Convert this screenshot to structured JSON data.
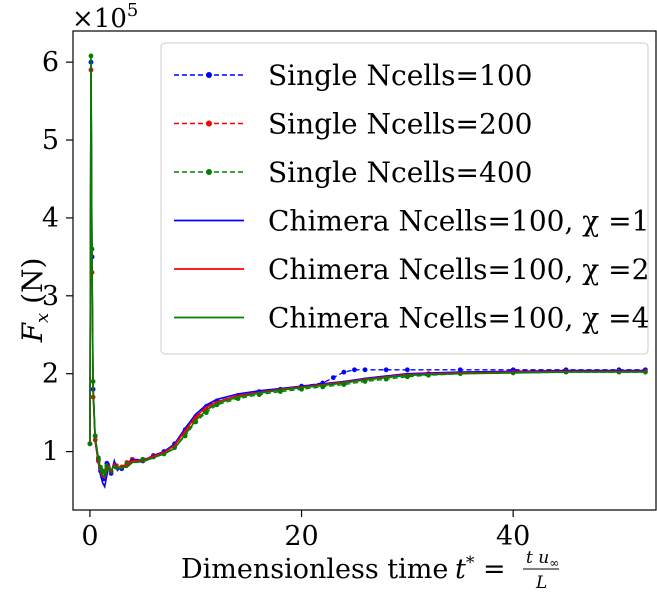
{
  "chart_data": {
    "type": "line",
    "title": "",
    "xlabel": "Dimensionless time",
    "xlabel_math": "t* = t u∞ / L",
    "ylabel": "F_x (N)",
    "y_scale_label": "×10^5",
    "xlim": [
      -1.6,
      53.5
    ],
    "ylim": [
      0.25,
      6.4
    ],
    "y_units_factor": 100000,
    "xticks": [
      0,
      20,
      40
    ],
    "xtick_labels": [
      "0",
      "20",
      "40"
    ],
    "yticks": [
      1,
      2,
      3,
      4,
      5,
      6
    ],
    "ytick_labels": [
      "1",
      "2",
      "3",
      "4",
      "5",
      "6"
    ],
    "grid": false,
    "legend_position": "top-right",
    "series": [
      {
        "name": "Single Ncells=100",
        "style": "dashed-markers",
        "color": "#0000ff",
        "x": [
          0,
          0.1,
          0.2,
          0.3,
          0.5,
          0.8,
          1.0,
          1.3,
          1.6,
          2.0,
          2.5,
          3.0,
          3.5,
          4.0,
          5.0,
          6.0,
          7.0,
          8.0,
          9.0,
          10.0,
          11.0,
          12.0,
          14.0,
          16.0,
          18.0,
          20.0,
          22.0,
          23.0,
          24.0,
          25.0,
          26.0,
          28.0,
          30.0,
          35.0,
          40.0,
          45.0,
          50.0,
          52.5
        ],
        "y": [
          1.1,
          6.0,
          3.5,
          1.8,
          1.2,
          0.9,
          0.75,
          0.65,
          0.85,
          0.72,
          0.8,
          0.78,
          0.85,
          0.9,
          0.88,
          0.95,
          1.0,
          1.1,
          1.28,
          1.45,
          1.58,
          1.65,
          1.72,
          1.77,
          1.8,
          1.84,
          1.88,
          1.95,
          2.02,
          2.05,
          2.05,
          2.05,
          2.05,
          2.05,
          2.05,
          2.05,
          2.05,
          2.05
        ]
      },
      {
        "name": "Single Ncells=200",
        "style": "dashed-markers",
        "color": "#ff0000",
        "x": [
          0,
          0.1,
          0.2,
          0.3,
          0.5,
          0.8,
          1.0,
          1.3,
          1.6,
          2.0,
          2.5,
          3.0,
          3.5,
          4.0,
          5.0,
          6.0,
          7.0,
          8.0,
          9.0,
          10.0,
          11.0,
          12.0,
          14.0,
          16.0,
          18.0,
          20.0,
          22.0,
          24.0,
          26.0,
          28.0,
          30.0,
          32.0,
          35.0,
          40.0,
          45.0,
          50.0,
          52.5
        ],
        "y": [
          1.1,
          5.9,
          3.3,
          1.7,
          1.15,
          0.88,
          0.78,
          0.75,
          0.8,
          0.75,
          0.82,
          0.8,
          0.86,
          0.9,
          0.9,
          0.94,
          0.98,
          1.08,
          1.25,
          1.43,
          1.55,
          1.62,
          1.7,
          1.75,
          1.79,
          1.82,
          1.85,
          1.88,
          1.92,
          1.95,
          1.98,
          2.0,
          2.01,
          2.02,
          2.03,
          2.03,
          2.03
        ]
      },
      {
        "name": "Single Ncells=400",
        "style": "dashed-markers",
        "color": "#008000",
        "x": [
          0,
          0.1,
          0.2,
          0.3,
          0.5,
          0.8,
          1.0,
          1.3,
          1.6,
          2.0,
          2.5,
          3.0,
          3.5,
          4.0,
          5.0,
          6.0,
          7.0,
          8.0,
          9.0,
          10.0,
          11.0,
          12.0,
          14.0,
          16.0,
          18.0,
          20.0,
          22.0,
          24.0,
          26.0,
          28.0,
          30.0,
          32.0,
          35.0,
          40.0,
          45.0,
          50.0,
          52.5
        ],
        "y": [
          1.1,
          6.08,
          3.6,
          1.9,
          1.2,
          0.92,
          0.8,
          0.74,
          0.82,
          0.74,
          0.8,
          0.8,
          0.84,
          0.88,
          0.9,
          0.93,
          0.97,
          1.05,
          1.2,
          1.38,
          1.5,
          1.6,
          1.68,
          1.73,
          1.77,
          1.8,
          1.83,
          1.86,
          1.9,
          1.93,
          1.96,
          1.98,
          2.0,
          2.01,
          2.02,
          2.02,
          2.02
        ]
      },
      {
        "name": "Chimera Ncells=100, χ =1",
        "style": "solid",
        "color": "#0000ff",
        "x": [
          0,
          0.1,
          0.2,
          0.3,
          0.5,
          0.8,
          1.0,
          1.2,
          1.4,
          1.6,
          1.8,
          2.0,
          2.3,
          2.6,
          3.0,
          3.5,
          4.0,
          5.0,
          6.0,
          7.0,
          8.0,
          9.0,
          10.0,
          11.0,
          12.0,
          14.0,
          16.0,
          18.0,
          20.0,
          22.0,
          24.0,
          26.0,
          28.0,
          30.0,
          35.0,
          40.0,
          45.0,
          50.0,
          52.5
        ],
        "y": [
          1.1,
          5.95,
          3.4,
          1.8,
          1.15,
          0.85,
          0.7,
          0.6,
          0.55,
          0.7,
          0.85,
          0.72,
          0.88,
          0.76,
          0.82,
          0.8,
          0.9,
          0.88,
          0.95,
          1.0,
          1.1,
          1.3,
          1.48,
          1.6,
          1.67,
          1.74,
          1.78,
          1.81,
          1.84,
          1.87,
          1.9,
          1.94,
          1.97,
          2.0,
          2.02,
          2.03,
          2.04,
          2.04,
          2.04
        ]
      },
      {
        "name": "Chimera Ncells=100, χ =2",
        "style": "solid",
        "color": "#ff0000",
        "x": [
          0,
          0.1,
          0.2,
          0.3,
          0.5,
          0.8,
          1.0,
          1.2,
          1.4,
          1.6,
          1.8,
          2.0,
          2.3,
          2.6,
          3.0,
          3.5,
          4.0,
          5.0,
          6.0,
          7.0,
          8.0,
          9.0,
          10.0,
          11.0,
          12.0,
          14.0,
          16.0,
          18.0,
          20.0,
          22.0,
          24.0,
          26.0,
          28.0,
          30.0,
          35.0,
          40.0,
          45.0,
          50.0,
          52.5
        ],
        "y": [
          1.1,
          5.85,
          3.3,
          1.75,
          1.12,
          0.86,
          0.74,
          0.68,
          0.66,
          0.75,
          0.82,
          0.74,
          0.84,
          0.78,
          0.82,
          0.82,
          0.88,
          0.88,
          0.94,
          0.99,
          1.08,
          1.27,
          1.45,
          1.57,
          1.64,
          1.72,
          1.76,
          1.8,
          1.83,
          1.86,
          1.89,
          1.93,
          1.96,
          1.99,
          2.01,
          2.02,
          2.03,
          2.03,
          2.03
        ]
      },
      {
        "name": "Chimera Ncells=100, χ =4",
        "style": "solid",
        "color": "#008000",
        "x": [
          0,
          0.1,
          0.2,
          0.3,
          0.5,
          0.8,
          1.0,
          1.2,
          1.4,
          1.6,
          1.8,
          2.0,
          2.3,
          2.6,
          3.0,
          3.5,
          4.0,
          5.0,
          6.0,
          7.0,
          8.0,
          9.0,
          10.0,
          11.0,
          12.0,
          14.0,
          16.0,
          18.0,
          20.0,
          22.0,
          24.0,
          26.0,
          28.0,
          30.0,
          35.0,
          40.0,
          45.0,
          50.0,
          52.5
        ],
        "y": [
          1.1,
          6.05,
          3.5,
          1.85,
          1.18,
          0.9,
          0.76,
          0.7,
          0.68,
          0.76,
          0.8,
          0.76,
          0.82,
          0.78,
          0.8,
          0.8,
          0.86,
          0.87,
          0.92,
          0.97,
          1.04,
          1.22,
          1.4,
          1.53,
          1.62,
          1.7,
          1.75,
          1.79,
          1.82,
          1.85,
          1.88,
          1.92,
          1.95,
          1.98,
          2.0,
          2.01,
          2.02,
          2.02,
          2.02
        ]
      }
    ]
  }
}
